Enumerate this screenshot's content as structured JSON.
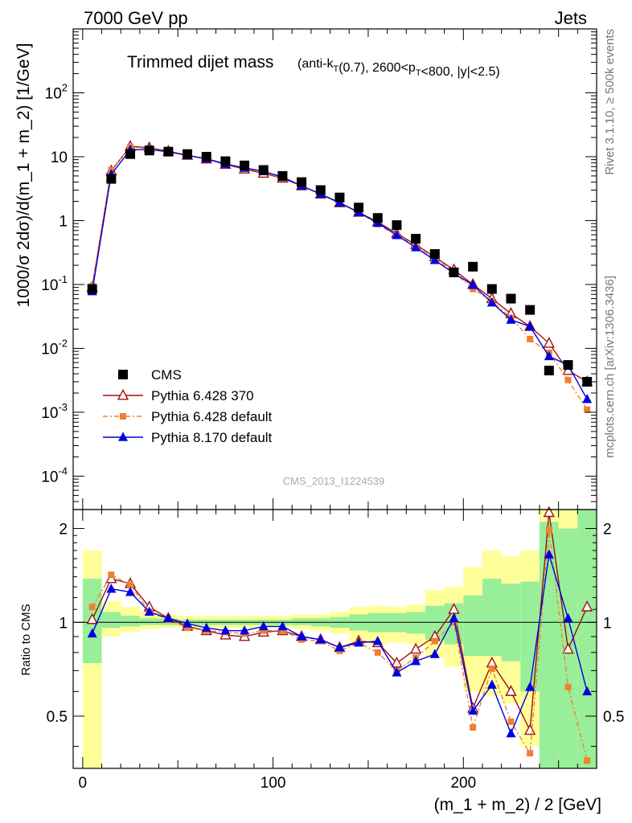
{
  "header": {
    "left": "7000 GeV pp",
    "right": "Jets"
  },
  "side_labels": {
    "top": "Rivet 3.1.10, ≥ 500k events",
    "bottom": "mcplots.cern.ch [arXiv:1306.3436]"
  },
  "watermark": "CMS_2013_I1224539",
  "chart_data": {
    "type": "scatter",
    "title": "Trimmed dijet mass",
    "title_detail": "(anti-k_T(0.7), 2600<p_T<800, |y|<2.5)",
    "xlabel": "(m_1 + m_2) / 2 [GeV]",
    "ylabel": "1000/σ 2dσ)/d(m_1 + m_2) [1/GeV]",
    "ratio_ylabel": "Ratio to CMS",
    "xlim": [
      -5,
      270
    ],
    "ylim": [
      3e-05,
      1000
    ],
    "yscale": "log",
    "ratio_ylim": [
      0.34,
      2.3
    ],
    "x_ticks": [
      "0",
      "100",
      "200"
    ],
    "y_ticks": [
      "10^{-4}",
      "10^{-3}",
      "10^{-2}",
      "10^{-1}",
      "1",
      "10",
      "10^{2}"
    ],
    "ratio_ticks": [
      "0.5",
      "1",
      "2"
    ],
    "x": [
      5,
      15,
      25,
      35,
      45,
      55,
      65,
      75,
      85,
      95,
      105,
      115,
      125,
      135,
      145,
      155,
      165,
      175,
      185,
      195,
      205,
      215,
      225,
      235,
      245,
      255,
      265
    ],
    "series": [
      {
        "name": "CMS",
        "color": "#000000",
        "marker": "square",
        "values": [
          0.085,
          4.5,
          11,
          12.5,
          12,
          11,
          10,
          8.5,
          7.3,
          6.2,
          5,
          4,
          3,
          2.3,
          1.6,
          1.1,
          0.85,
          0.52,
          0.3,
          0.155,
          0.19,
          0.085,
          0.06,
          0.04,
          0.0045,
          0.0055,
          0.003
        ]
      },
      {
        "name": "Pythia 6.428 370",
        "color": "#a01010",
        "marker": "open-triangle",
        "values": [
          0.09,
          6,
          14.5,
          13.8,
          12.2,
          10.5,
          9.2,
          7.6,
          6.4,
          5.5,
          4.6,
          3.5,
          2.6,
          1.9,
          1.35,
          0.95,
          0.63,
          0.42,
          0.27,
          0.17,
          0.1,
          0.06,
          0.035,
          0.022,
          0.012,
          0.0045,
          0.003
        ]
      },
      {
        "name": "Pythia 6.428 default",
        "color": "#f08030",
        "marker": "filled-square",
        "values": [
          0.095,
          6.2,
          14,
          13.5,
          12,
          10.5,
          9.3,
          7.8,
          6.5,
          5.8,
          4.6,
          3.5,
          2.6,
          1.85,
          1.35,
          0.88,
          0.59,
          0.4,
          0.26,
          0.155,
          0.085,
          0.055,
          0.03,
          0.014,
          0.0085,
          0.0032,
          0.0011
        ]
      },
      {
        "name": "Pythia 8.170 default",
        "color": "#0000e0",
        "marker": "filled-triangle",
        "values": [
          0.078,
          5.3,
          12.8,
          13.0,
          11.9,
          10.5,
          9.3,
          7.7,
          6.7,
          5.9,
          4.8,
          3.5,
          2.6,
          1.9,
          1.35,
          0.92,
          0.59,
          0.38,
          0.24,
          0.15,
          0.098,
          0.052,
          0.028,
          0.022,
          0.0075,
          0.0055,
          0.0016
        ]
      }
    ],
    "ratio_series": [
      {
        "name": "Pythia 6.428 370",
        "values": [
          1.02,
          1.38,
          1.33,
          1.12,
          1.03,
          0.97,
          0.94,
          0.91,
          0.9,
          0.93,
          0.94,
          0.9,
          0.88,
          0.83,
          0.87,
          0.86,
          0.74,
          0.82,
          0.9,
          1.1,
          0.53,
          0.74,
          0.6,
          0.45,
          2.25,
          0.82,
          1.12
        ]
      },
      {
        "name": "Pythia 6.428 default",
        "values": [
          1.12,
          1.42,
          1.32,
          1.08,
          1.02,
          0.96,
          0.94,
          0.93,
          0.92,
          0.94,
          0.94,
          0.88,
          0.87,
          0.81,
          0.86,
          0.8,
          0.7,
          0.77,
          0.87,
          1.0,
          0.46,
          0.71,
          0.48,
          0.38,
          1.98,
          0.62,
          0.36
        ]
      },
      {
        "name": "Pythia 8.170 default",
        "values": [
          0.92,
          1.28,
          1.25,
          1.08,
          1.03,
          0.99,
          0.96,
          0.94,
          0.94,
          0.97,
          0.97,
          0.9,
          0.88,
          0.83,
          0.86,
          0.87,
          0.69,
          0.75,
          0.79,
          1.03,
          0.52,
          0.63,
          0.44,
          0.62,
          1.65,
          1.03,
          0.6
        ]
      }
    ],
    "ratio_bands": [
      {
        "x": [
          0,
          10
        ],
        "yellow": [
          0.34,
          1.7
        ],
        "green": [
          0.74,
          1.38
        ]
      },
      {
        "x": [
          10,
          20
        ],
        "yellow": [
          0.9,
          1.17
        ],
        "green": [
          0.96,
          1.08
        ]
      },
      {
        "x": [
          20,
          30
        ],
        "yellow": [
          0.93,
          1.12
        ],
        "green": [
          0.97,
          1.05
        ]
      },
      {
        "x": [
          30,
          40
        ],
        "yellow": [
          0.95,
          1.08
        ],
        "green": [
          0.98,
          1.03
        ]
      },
      {
        "x": [
          40,
          50
        ],
        "yellow": [
          0.96,
          1.06
        ],
        "green": [
          0.98,
          1.03
        ]
      },
      {
        "x": [
          50,
          60
        ],
        "yellow": [
          0.96,
          1.05
        ],
        "green": [
          0.98,
          1.02
        ]
      },
      {
        "x": [
          60,
          70
        ],
        "yellow": [
          0.96,
          1.05
        ],
        "green": [
          0.98,
          1.02
        ]
      },
      {
        "x": [
          70,
          80
        ],
        "yellow": [
          0.96,
          1.05
        ],
        "green": [
          0.98,
          1.02
        ]
      },
      {
        "x": [
          80,
          90
        ],
        "yellow": [
          0.96,
          1.05
        ],
        "green": [
          0.98,
          1.02
        ]
      },
      {
        "x": [
          90,
          100
        ],
        "yellow": [
          0.96,
          1.05
        ],
        "green": [
          0.98,
          1.02
        ]
      },
      {
        "x": [
          100,
          110
        ],
        "yellow": [
          0.96,
          1.05
        ],
        "green": [
          0.98,
          1.02
        ]
      },
      {
        "x": [
          110,
          120
        ],
        "yellow": [
          0.95,
          1.06
        ],
        "green": [
          0.98,
          1.03
        ]
      },
      {
        "x": [
          120,
          130
        ],
        "yellow": [
          0.94,
          1.06
        ],
        "green": [
          0.97,
          1.03
        ]
      },
      {
        "x": [
          130,
          140
        ],
        "yellow": [
          0.92,
          1.08
        ],
        "green": [
          0.96,
          1.04
        ]
      },
      {
        "x": [
          140,
          150
        ],
        "yellow": [
          0.87,
          1.12
        ],
        "green": [
          0.94,
          1.06
        ]
      },
      {
        "x": [
          150,
          160
        ],
        "yellow": [
          0.85,
          1.13
        ],
        "green": [
          0.93,
          1.07
        ]
      },
      {
        "x": [
          160,
          170
        ],
        "yellow": [
          0.86,
          1.12
        ],
        "green": [
          0.93,
          1.07
        ]
      },
      {
        "x": [
          170,
          180
        ],
        "yellow": [
          0.85,
          1.14
        ],
        "green": [
          0.92,
          1.08
        ]
      },
      {
        "x": [
          180,
          190
        ],
        "yellow": [
          0.77,
          1.27
        ],
        "green": [
          0.88,
          1.13
        ]
      },
      {
        "x": [
          190,
          200
        ],
        "yellow": [
          0.72,
          1.3
        ],
        "green": [
          0.85,
          1.15
        ]
      },
      {
        "x": [
          200,
          210
        ],
        "yellow": [
          0.6,
          1.5
        ],
        "green": [
          0.78,
          1.22
        ]
      },
      {
        "x": [
          210,
          220
        ],
        "yellow": [
          0.58,
          1.7
        ],
        "green": [
          0.78,
          1.38
        ]
      },
      {
        "x": [
          220,
          230
        ],
        "yellow": [
          0.55,
          1.63
        ],
        "green": [
          0.75,
          1.33
        ]
      },
      {
        "x": [
          230,
          240
        ],
        "yellow": [
          0.4,
          1.7
        ],
        "green": [
          0.6,
          1.35
        ]
      },
      {
        "x": [
          240,
          250
        ],
        "yellow": [
          0.34,
          2.3
        ],
        "green": [
          0.34,
          2.1
        ]
      },
      {
        "x": [
          250,
          260
        ],
        "yellow": [
          0.34,
          2.3
        ],
        "green": [
          0.34,
          2.0
        ]
      },
      {
        "x": [
          260,
          270
        ],
        "yellow": [
          0.34,
          2.3
        ],
        "green": [
          0.34,
          2.3
        ]
      }
    ],
    "legend_position": "lower-left",
    "grid": false
  }
}
